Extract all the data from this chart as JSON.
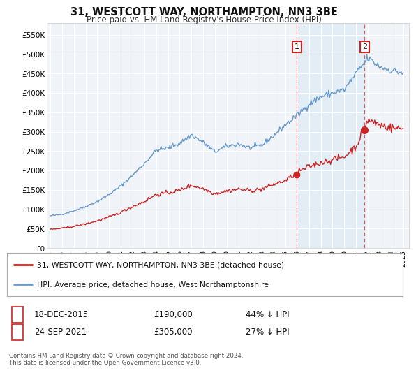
{
  "title": "31, WESTCOTT WAY, NORTHAMPTON, NN3 3BE",
  "subtitle": "Price paid vs. HM Land Registry's House Price Index (HPI)",
  "bg_color": "#ffffff",
  "plot_bg_color": "#f0f4f8",
  "grid_color": "#ffffff",
  "hpi_color": "#6699cc",
  "price_color": "#cc2222",
  "sale1_date": "18-DEC-2015",
  "sale1_price": 190000,
  "sale1_price_str": "£190,000",
  "sale1_label": "44% ↓ HPI",
  "sale2_date": "24-SEP-2021",
  "sale2_price": 305000,
  "sale2_price_str": "£305,000",
  "sale2_label": "27% ↓ HPI",
  "legend_line1": "31, WESTCOTT WAY, NORTHAMPTON, NN3 3BE (detached house)",
  "legend_line2": "HPI: Average price, detached house, West Northamptonshire",
  "footnote": "Contains HM Land Registry data © Crown copyright and database right 2024.\nThis data is licensed under the Open Government Licence v3.0.",
  "ylim": [
    0,
    580000
  ],
  "yticks": [
    0,
    50000,
    100000,
    150000,
    200000,
    250000,
    300000,
    350000,
    400000,
    450000,
    500000,
    550000
  ],
  "ytick_labels": [
    "£0",
    "£50K",
    "£100K",
    "£150K",
    "£200K",
    "£250K",
    "£300K",
    "£350K",
    "£400K",
    "£450K",
    "£500K",
    "£550K"
  ],
  "sale1_x": 2015.96,
  "sale2_x": 2021.73,
  "span_color": "#d8e8f5",
  "dashed_color": "#dd4444",
  "xtick_years": [
    1995,
    1996,
    1997,
    1998,
    1999,
    2000,
    2001,
    2002,
    2003,
    2004,
    2005,
    2006,
    2007,
    2008,
    2009,
    2010,
    2011,
    2012,
    2013,
    2014,
    2015,
    2016,
    2017,
    2018,
    2019,
    2020,
    2021,
    2022,
    2023,
    2024,
    2025
  ],
  "xlim_left": 1994.7,
  "xlim_right": 2025.5
}
